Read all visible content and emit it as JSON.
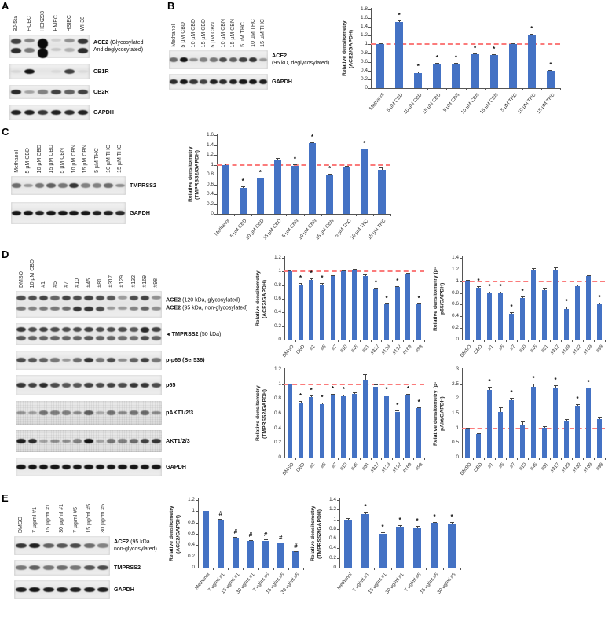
{
  "panel_letters": {
    "A": "A",
    "B": "B",
    "C": "C",
    "D": "D",
    "E": "E"
  },
  "colors": {
    "bar": "#4472c4",
    "ref_line": "#fb7b7b",
    "band": "#0b0b0b",
    "axis": "#555555"
  },
  "blots": {
    "A": {
      "lanes": [
        "BJ-5ta",
        "HCEC",
        "HEK293",
        "HMEC",
        "HSIEC",
        "WI-38"
      ],
      "strips": [
        {
          "labels": [
            {
              "b": "ACE2",
              "n": "(Glycosylated"
            },
            {
              "b": "",
              "n": "And deglycosylated)"
            }
          ],
          "rows": [
            [
              0.75,
              0.45,
              1,
              0.12,
              0.4,
              0.8
            ],
            [
              0.85,
              0.5,
              0.99,
              0.15,
              0.25,
              0.85
            ]
          ]
        },
        {
          "labels": [
            {
              "b": "CB1R",
              "n": ""
            }
          ],
          "rows": [
            [
              0.06,
              0.95,
              0,
              0.05,
              0.75,
              0.04
            ]
          ]
        },
        {
          "labels": [
            {
              "b": "CB2R",
              "n": ""
            }
          ],
          "rows": [
            [
              0.85,
              0.3,
              0.45,
              0.75,
              0.6,
              0.75
            ]
          ]
        },
        {
          "labels": [
            {
              "b": "GAPDH",
              "n": ""
            }
          ],
          "rows": [
            [
              0.9,
              0.9,
              0.8,
              0.9,
              0.85,
              0.9
            ]
          ]
        }
      ]
    },
    "B": {
      "lanes": [
        "Methanol",
        "5 µM CBD",
        "10 µM CBD",
        "15 µM CBD",
        "5 µM CBN",
        "10 µM CBN",
        "15 µM CBN",
        "5 µM THC",
        "10 µM THC",
        "15 µM THC"
      ],
      "strips": [
        {
          "labels": [
            {
              "b": "ACE2",
              "n": ""
            },
            {
              "b": "",
              "n": "(95 kD, deglycosylated)"
            }
          ],
          "rows": [
            [
              0.55,
              0.95,
              0.4,
              0.45,
              0.5,
              0.7,
              0.6,
              0.75,
              0.8,
              0.35
            ]
          ]
        },
        {
          "labels": [
            {
              "b": "GAPDH",
              "n": ""
            }
          ],
          "rows": [
            [
              0.85,
              0.95,
              0.8,
              0.75,
              0.9,
              0.85,
              0.9,
              0.95,
              0.95,
              0.9
            ]
          ]
        }
      ]
    },
    "C": {
      "lanes": [
        "Methanol",
        "5 µM CBD",
        "10 µM CBD",
        "15 µM CBD",
        "5 µM CBN",
        "10 µM CBN",
        "15 µM CBN",
        "5 µM THC",
        "10 µM THC",
        "15 µM THC"
      ],
      "strips": [
        {
          "labels": [
            {
              "b": "TMPRSS2",
              "n": ""
            }
          ],
          "rows": [
            [
              0.55,
              0.35,
              0.5,
              0.6,
              0.5,
              0.8,
              0.45,
              0.45,
              0.55,
              0.4
            ]
          ]
        },
        {
          "labels": [
            {
              "b": "GAPDH",
              "n": ""
            }
          ],
          "rows": [
            [
              0.95,
              0.95,
              0.9,
              0.95,
              0.95,
              0.95,
              0.95,
              0.9,
              0.9,
              0.85
            ]
          ]
        }
      ]
    },
    "D": {
      "lanes": [
        "DMSO",
        "10 µM CBD",
        "#1",
        "#5",
        "#7",
        "#10",
        "#45",
        "#81",
        "#317",
        "#129",
        "#132",
        "#169",
        "#98"
      ],
      "strips": [
        {
          "labels": [
            {
              "b": "ACE2",
              "n": "(120 kDa, glycosylated)"
            },
            {
              "b": "ACE2",
              "n": "(95 kDa, non-glycosylated)"
            }
          ],
          "rows": [
            [
              0.7,
              0.7,
              0.75,
              0.6,
              0.75,
              0.7,
              0.75,
              0.7,
              0.65,
              0.35,
              0.7,
              0.75,
              0.4
            ],
            [
              0.5,
              0.45,
              0.5,
              0.5,
              0.55,
              0.8,
              0.8,
              0.7,
              0.35,
              0.35,
              0.45,
              0.6,
              0.4
            ]
          ]
        },
        {
          "labels": [
            {
              "b": "TMPRSS2",
              "n": "(50 kDa)"
            }
          ],
          "arrow": true,
          "rows": [
            [
              0.8,
              0.7,
              0.75,
              0.7,
              0.7,
              0.7,
              0.75,
              0.7,
              0.7,
              0.7,
              0.65,
              0.85,
              0.75
            ],
            [
              0.65,
              0.6,
              0.6,
              0.6,
              0.6,
              0.6,
              0.65,
              0.6,
              0.6,
              0.55,
              0.55,
              0.7,
              0.6
            ]
          ]
        },
        {
          "labels": [
            {
              "b": "p-p65 (Ser536)",
              "n": ""
            }
          ],
          "rows": [
            [
              0.7,
              0.65,
              0.6,
              0.5,
              0.35,
              0.55,
              0.8,
              0.5,
              0.7,
              0.4,
              0.6,
              0.75,
              0.5
            ]
          ]
        },
        {
          "labels": [
            {
              "b": "p65",
              "n": ""
            }
          ],
          "rows": [
            [
              0.8,
              0.75,
              0.85,
              0.7,
              0.65,
              0.65,
              0.75,
              0.7,
              0.75,
              0.7,
              0.8,
              0.8,
              0.7
            ]
          ]
        },
        {
          "labels": [
            {
              "b": "pAKT1/2/3",
              "n": ""
            }
          ],
          "noisy": true,
          "rows": [
            [
              0.35,
              0.3,
              0.5,
              0.45,
              0.45,
              0.4,
              0.6,
              0.25,
              0.5,
              0.4,
              0.5,
              0.55,
              0.4
            ]
          ]
        },
        {
          "labels": [
            {
              "b": "AKT1/2/3",
              "n": ""
            }
          ],
          "noisy": true,
          "rows": [
            [
              0.9,
              0.85,
              0.3,
              0.4,
              0.4,
              0.45,
              0.95,
              0.3,
              0.5,
              0.45,
              0.55,
              0.75,
              0.8
            ]
          ]
        },
        {
          "labels": [
            {
              "b": "GAPDH",
              "n": ""
            }
          ],
          "rows": [
            [
              0.95,
              0.95,
              0.95,
              0.95,
              0.95,
              0.95,
              0.95,
              0.95,
              0.95,
              0.95,
              0.95,
              0.95,
              0.95
            ]
          ]
        }
      ]
    },
    "E": {
      "lanes": [
        "DMSO",
        "7 µg/ml #1",
        "15 µg/ml #1",
        "30 µg/ml #1",
        "7 µg/ml #5",
        "15 µg/ml #5",
        "30 µg/ml #5"
      ],
      "strips": [
        {
          "labels": [
            {
              "b": "ACE2",
              "n": "(95 kDa"
            },
            {
              "b": "",
              "n": "non-glycosylated)"
            }
          ],
          "rows": [
            [
              0.8,
              0.9,
              0.6,
              0.65,
              0.7,
              0.55,
              0.45
            ]
          ]
        },
        {
          "labels": [
            {
              "b": "TMPRSS2",
              "n": ""
            }
          ],
          "rows": [
            [
              0.5,
              0.6,
              0.5,
              0.55,
              0.5,
              0.65,
              0.7
            ]
          ]
        },
        {
          "labels": [
            {
              "b": "GAPDH",
              "n": ""
            }
          ],
          "rows": [
            [
              0.9,
              0.95,
              0.9,
              0.9,
              0.9,
              0.9,
              0.9
            ]
          ]
        }
      ]
    }
  },
  "chart_data": [
    {
      "type": "bar",
      "panel": "B",
      "title": "",
      "ylabel": "Relative densitometry (ACE2/GAPDH)",
      "ylabel_lines": [
        "Relative densitometry",
        "(ACE2/GAPDH)"
      ],
      "ylim": [
        0,
        1.8
      ],
      "ytick": 0.2,
      "ref_line": 1,
      "grid": false,
      "legend": "none",
      "categories": [
        "Methanol",
        "5 µM CBD",
        "10 µM CBD",
        "15 µM CBD",
        "5 µM CBN",
        "10 µM CBN",
        "15 µM CBN",
        "5 µM THC",
        "10 µM THC",
        "15 µM THC"
      ],
      "values": [
        1.0,
        1.52,
        0.35,
        0.56,
        0.56,
        0.78,
        0.75,
        1.01,
        1.21,
        0.4
      ],
      "errors": [
        0.02,
        0.03,
        0.02,
        0.02,
        0.02,
        0.02,
        0.02,
        0.02,
        0.03,
        0.02
      ],
      "markers": [
        "",
        "*",
        "*",
        "*",
        "*",
        "*",
        "*",
        "",
        "*",
        "*"
      ]
    },
    {
      "type": "bar",
      "panel": "C",
      "title": "",
      "ylabel": "Relative densitometry (TMPRSS2/GAPDH)",
      "ylabel_lines": [
        "Relative densitometry",
        "(TMPRSS2/GAPDH)"
      ],
      "ylim": [
        0,
        1.6
      ],
      "ytick": 0.2,
      "ref_line": 1,
      "grid": false,
      "legend": "none",
      "categories": [
        "Methanol",
        "5 µM CBD",
        "10 µM CBD",
        "15 µM CBD",
        "5 µM CBN",
        "10 µM CBN",
        "15 µM CBN",
        "5 µM THC",
        "10 µM THC",
        "15 µM THC"
      ],
      "values": [
        1.0,
        0.53,
        0.72,
        1.11,
        0.97,
        1.44,
        0.8,
        0.95,
        1.31,
        0.9
      ],
      "errors": [
        0.02,
        0.03,
        0.02,
        0.02,
        0.04,
        0.02,
        0.02,
        0.03,
        0.02,
        0.04
      ],
      "markers": [
        "",
        "*",
        "*",
        "",
        "*",
        "*",
        "*",
        "",
        "*",
        ""
      ]
    },
    {
      "type": "bar",
      "panel": "D",
      "title": "",
      "ylabel": "Relative densitometry (ACE2/GAPDH)",
      "ylabel_lines": [
        "Relative densitometry",
        "(ACE2/GAPDH)"
      ],
      "ylim": [
        0,
        1.2
      ],
      "ytick": 0.2,
      "ref_line": 1,
      "grid": false,
      "legend": "none",
      "categories": [
        "DMSO",
        "CBD",
        "#1",
        "#5",
        "#7",
        "#10",
        "#45",
        "#81",
        "#317",
        "#129",
        "#132",
        "#169",
        "#98"
      ],
      "values": [
        1.0,
        0.81,
        0.88,
        0.81,
        0.93,
        1.0,
        1.01,
        0.94,
        0.74,
        0.52,
        0.77,
        0.96,
        0.52
      ],
      "errors": [
        0.01,
        0.02,
        0.02,
        0.02,
        0.02,
        0.01,
        0.03,
        0.02,
        0.02,
        0.01,
        0.02,
        0.02,
        0.01
      ],
      "markers": [
        "",
        "*",
        "*",
        "*",
        "",
        "",
        "",
        "",
        "*",
        "*",
        "*",
        "",
        "*"
      ]
    },
    {
      "type": "bar",
      "panel": "D",
      "title": "",
      "ylabel": "Relative densitometry (p-p65/GAPDH)",
      "ylabel_lines": [
        "Relative densitometry (p-",
        "p65/GAPDH)"
      ],
      "ylim": [
        0,
        1.4
      ],
      "ytick": 0.2,
      "ref_line": 1,
      "grid": false,
      "legend": "none",
      "categories": [
        "DMSO",
        "CBD",
        "#1",
        "#5",
        "#7",
        "#10",
        "#45",
        "#81",
        "#317",
        "#129",
        "#132",
        "#169",
        "#98"
      ],
      "values": [
        1.0,
        0.89,
        0.79,
        0.8,
        0.45,
        0.72,
        1.19,
        0.85,
        1.2,
        0.53,
        0.91,
        1.09,
        0.61
      ],
      "errors": [
        0.02,
        0.02,
        0.03,
        0.02,
        0.02,
        0.02,
        0.04,
        0.04,
        0.04,
        0.03,
        0.03,
        0.02,
        0.02
      ],
      "markers": [
        "",
        "*",
        "*",
        "*",
        "*",
        "*",
        "",
        "",
        "",
        "*",
        "",
        "",
        "*"
      ]
    },
    {
      "type": "bar",
      "panel": "D",
      "title": "",
      "ylabel": "Relative densitometry (TMPRSS2/GAPDH)",
      "ylabel_lines": [
        "Relative densitometry",
        "(TMPRSS2/GAPDH)"
      ],
      "ylim": [
        0,
        1.2
      ],
      "ytick": 0.2,
      "ref_line": 1,
      "grid": false,
      "legend": "none",
      "categories": [
        "DMSO",
        "CBD",
        "#1",
        "#5",
        "#7",
        "#10",
        "#45",
        "#81",
        "#317",
        "#129",
        "#132",
        "#169",
        "#98"
      ],
      "values": [
        1.0,
        0.75,
        0.83,
        0.73,
        0.85,
        0.84,
        0.87,
        1.06,
        0.96,
        0.84,
        0.62,
        0.85,
        0.67
      ],
      "errors": [
        0.01,
        0.02,
        0.02,
        0.02,
        0.02,
        0.02,
        0.02,
        0.08,
        0.04,
        0.02,
        0.02,
        0.02,
        0.02
      ],
      "markers": [
        "",
        "*",
        "*",
        "*",
        "*",
        "*",
        "",
        "",
        "",
        "*",
        "*",
        "*",
        "*"
      ]
    },
    {
      "type": "bar",
      "panel": "D",
      "title": "",
      "ylabel": "Relative densitometry (p-pAkt/GAPDH)",
      "ylabel_lines": [
        "Relative densitometry (p-",
        "pAkt/GAPDH)"
      ],
      "ylim": [
        0,
        3
      ],
      "ytick": 0.5,
      "ref_line": 1,
      "grid": false,
      "legend": "none",
      "categories": [
        "DMSO",
        "CBD",
        "#1",
        "#5",
        "#7",
        "#10",
        "#45",
        "#81",
        "#317",
        "#129",
        "#132",
        "#169",
        "#98"
      ],
      "values": [
        1.0,
        0.81,
        2.3,
        1.56,
        1.95,
        1.09,
        2.41,
        1.03,
        2.38,
        1.25,
        1.78,
        2.35,
        1.32
      ],
      "errors": [
        0.03,
        0.03,
        0.12,
        0.15,
        0.08,
        0.15,
        0.12,
        0.05,
        0.08,
        0.05,
        0.05,
        0.04,
        0.08
      ],
      "markers": [
        "",
        "",
        "*",
        "",
        "*",
        "",
        "*",
        "",
        "*",
        "",
        "*",
        "*",
        ""
      ]
    },
    {
      "type": "bar",
      "panel": "E",
      "title": "",
      "ylabel": "Relative densitometry (ACE2/GAPDH)",
      "ylabel_lines": [
        "Relative densitometry",
        "(ACE2/GAPDH)"
      ],
      "ylim": [
        0,
        1.2
      ],
      "ytick": 0.2,
      "ref_line": null,
      "grid": false,
      "legend": "none",
      "categories": [
        "Methanol",
        "7 ug/ml #1",
        "15 ug/ml #1",
        "30 ug/ml #1",
        "7 ug/ml #5",
        "15 ug/ml #5",
        "30 ug/ml #5"
      ],
      "values": [
        1.0,
        0.85,
        0.53,
        0.47,
        0.48,
        0.43,
        0.29
      ],
      "errors": [
        0,
        0.02,
        0.02,
        0.02,
        0.02,
        0.02,
        0.01
      ],
      "markers": [
        "",
        "#",
        "#",
        "#",
        "#",
        "#",
        "#"
      ]
    },
    {
      "type": "bar",
      "panel": "E",
      "title": "",
      "ylabel": "Relative densitometry (TMPRSS2/GAPDH)",
      "ylabel_lines": [
        "Relative densitometry",
        "(TMPRSS2/GAPDH)"
      ],
      "ylim": [
        0,
        1.4
      ],
      "ytick": 0.2,
      "ref_line": null,
      "grid": false,
      "legend": "none",
      "categories": [
        "Methanol",
        "7 ug/ml #1",
        "15 ug/ml #1",
        "30 ug/ml #1",
        "7 ug/ml #5",
        "15 ug/ml #5",
        "30 ug/ml #5"
      ],
      "values": [
        1.0,
        1.1,
        0.7,
        0.85,
        0.83,
        0.92,
        0.91
      ],
      "errors": [
        0.02,
        0.06,
        0.03,
        0.03,
        0.04,
        0.03,
        0.03
      ],
      "markers": [
        "",
        "*",
        "*",
        "*",
        "*",
        "*",
        "*"
      ]
    }
  ]
}
